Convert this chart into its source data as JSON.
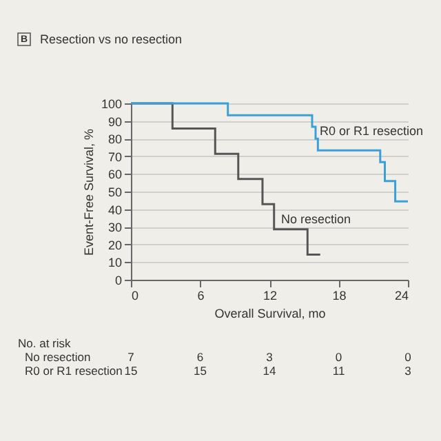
{
  "chart_data": {
    "type": "step",
    "title": "Resection vs no resection",
    "xlabel": "Overall Survival, mo",
    "ylabel": "Event-Free Survival, %",
    "xlim": [
      0,
      24
    ],
    "xticks": [
      0,
      6,
      12,
      18,
      24
    ],
    "ylim": [
      0,
      100
    ],
    "yticks": [
      0,
      10,
      20,
      30,
      40,
      50,
      60,
      70,
      80,
      90,
      100
    ],
    "grid": "y",
    "legend": false,
    "series": [
      {
        "name": "No resection",
        "color": "#555555",
        "x": [
          0,
          3.6,
          7.3,
          9.3,
          11.4,
          12.4,
          15.3,
          16.4
        ],
        "values": [
          100,
          85.7,
          71.4,
          57.1,
          42.9,
          28.6,
          14.3,
          14.3
        ]
      },
      {
        "name": "R0 or R1 resection",
        "color": "#3ca0d8",
        "x": [
          0,
          8.4,
          15.7,
          16.0,
          16.2,
          21.6,
          22.0,
          22.9,
          24
        ],
        "values": [
          100,
          93.3,
          86.7,
          80,
          73.3,
          66.7,
          56,
          44.4,
          44.4
        ]
      }
    ],
    "annotations": [
      "B",
      "No. at risk",
      "No resection",
      "7",
      "6",
      "3",
      "0",
      "0",
      "R0 or R1 resection",
      "15",
      "15",
      "14",
      "11",
      "3"
    ]
  }
}
